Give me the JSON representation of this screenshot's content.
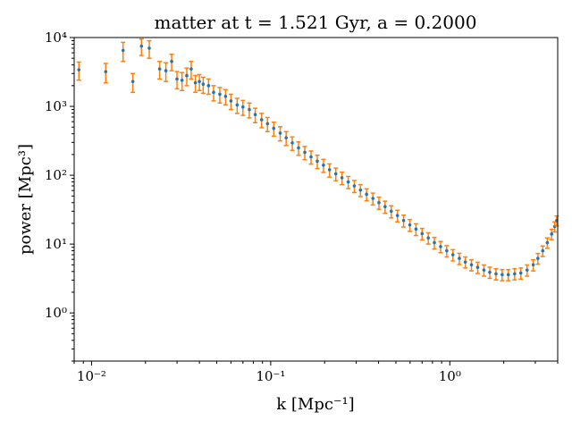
{
  "chart_data": {
    "type": "scatter",
    "title": "matter at t = 1.521 Gyr, a = 0.2000",
    "xlabel": "k [Mpc⁻¹]",
    "ylabel": "power [Mpc³]",
    "xscale": "log",
    "yscale": "log",
    "xlim": [
      0.008,
      4.0
    ],
    "ylim": [
      0.2,
      10000
    ],
    "grid": false,
    "x_tick_labels": [
      "10⁻²",
      "10⁻¹",
      "10⁰"
    ],
    "y_tick_labels": [
      "10⁰",
      "10¹",
      "10²",
      "10³",
      "10⁴"
    ],
    "colors": {
      "points": "#1f77b4",
      "errorbars": "#ff7f0e"
    },
    "series": [
      {
        "x": [
          0.0085,
          0.012,
          0.015,
          0.017,
          0.019,
          0.021,
          0.024,
          0.026,
          0.028,
          0.03,
          0.032,
          0.034,
          0.036,
          0.038,
          0.04,
          0.042,
          0.045,
          0.048,
          0.052,
          0.056,
          0.06,
          0.065,
          0.07,
          0.076,
          0.082,
          0.089,
          0.096,
          0.104,
          0.113,
          0.122,
          0.132,
          0.143,
          0.155,
          0.168,
          0.182,
          0.197,
          0.213,
          0.231,
          0.25,
          0.271,
          0.293,
          0.317,
          0.343,
          0.372,
          0.402,
          0.435,
          0.471,
          0.51,
          0.552,
          0.598,
          0.647,
          0.7,
          0.758,
          0.82,
          0.888,
          0.961,
          1.04,
          1.13,
          1.22,
          1.32,
          1.43,
          1.55,
          1.67,
          1.81,
          1.96,
          2.12,
          2.3,
          2.49,
          2.7,
          2.92,
          3.1,
          3.3,
          3.5,
          3.7,
          3.85,
          3.95
        ],
        "y": [
          3400,
          3200,
          6500,
          2300,
          7500,
          7000,
          3500,
          3300,
          4500,
          2500,
          2400,
          2800,
          3500,
          2200,
          2300,
          2100,
          2000,
          1600,
          1500,
          1400,
          1200,
          1050,
          980,
          900,
          760,
          640,
          560,
          480,
          410,
          350,
          295,
          250,
          215,
          185,
          160,
          140,
          120,
          105,
          92,
          80,
          70,
          61,
          53,
          46,
          40,
          35,
          30,
          26,
          22,
          19,
          16.5,
          14.2,
          12.3,
          10.5,
          9.2,
          8.0,
          7.0,
          6.2,
          5.5,
          5.0,
          4.6,
          4.2,
          3.9,
          3.7,
          3.6,
          3.6,
          3.7,
          3.8,
          4.2,
          5.0,
          6.2,
          8.0,
          10.5,
          14.0,
          18.0,
          22.0
        ],
        "yerr": [
          1000,
          1000,
          2000,
          700,
          2000,
          2000,
          1000,
          1000,
          1200,
          700,
          700,
          800,
          1000,
          600,
          600,
          550,
          500,
          400,
          380,
          350,
          300,
          260,
          240,
          220,
          180,
          150,
          130,
          110,
          95,
          80,
          65,
          55,
          47,
          40,
          35,
          30,
          26,
          22,
          19,
          16,
          14,
          12,
          10.5,
          9,
          8,
          7,
          6,
          5,
          4.3,
          3.7,
          3.2,
          2.7,
          2.3,
          2.0,
          1.7,
          1.5,
          1.3,
          1.15,
          1.0,
          0.92,
          0.85,
          0.78,
          0.72,
          0.68,
          0.66,
          0.66,
          0.68,
          0.7,
          0.78,
          0.92,
          1.1,
          1.4,
          1.8,
          2.4,
          3.0,
          3.6
        ]
      }
    ]
  }
}
